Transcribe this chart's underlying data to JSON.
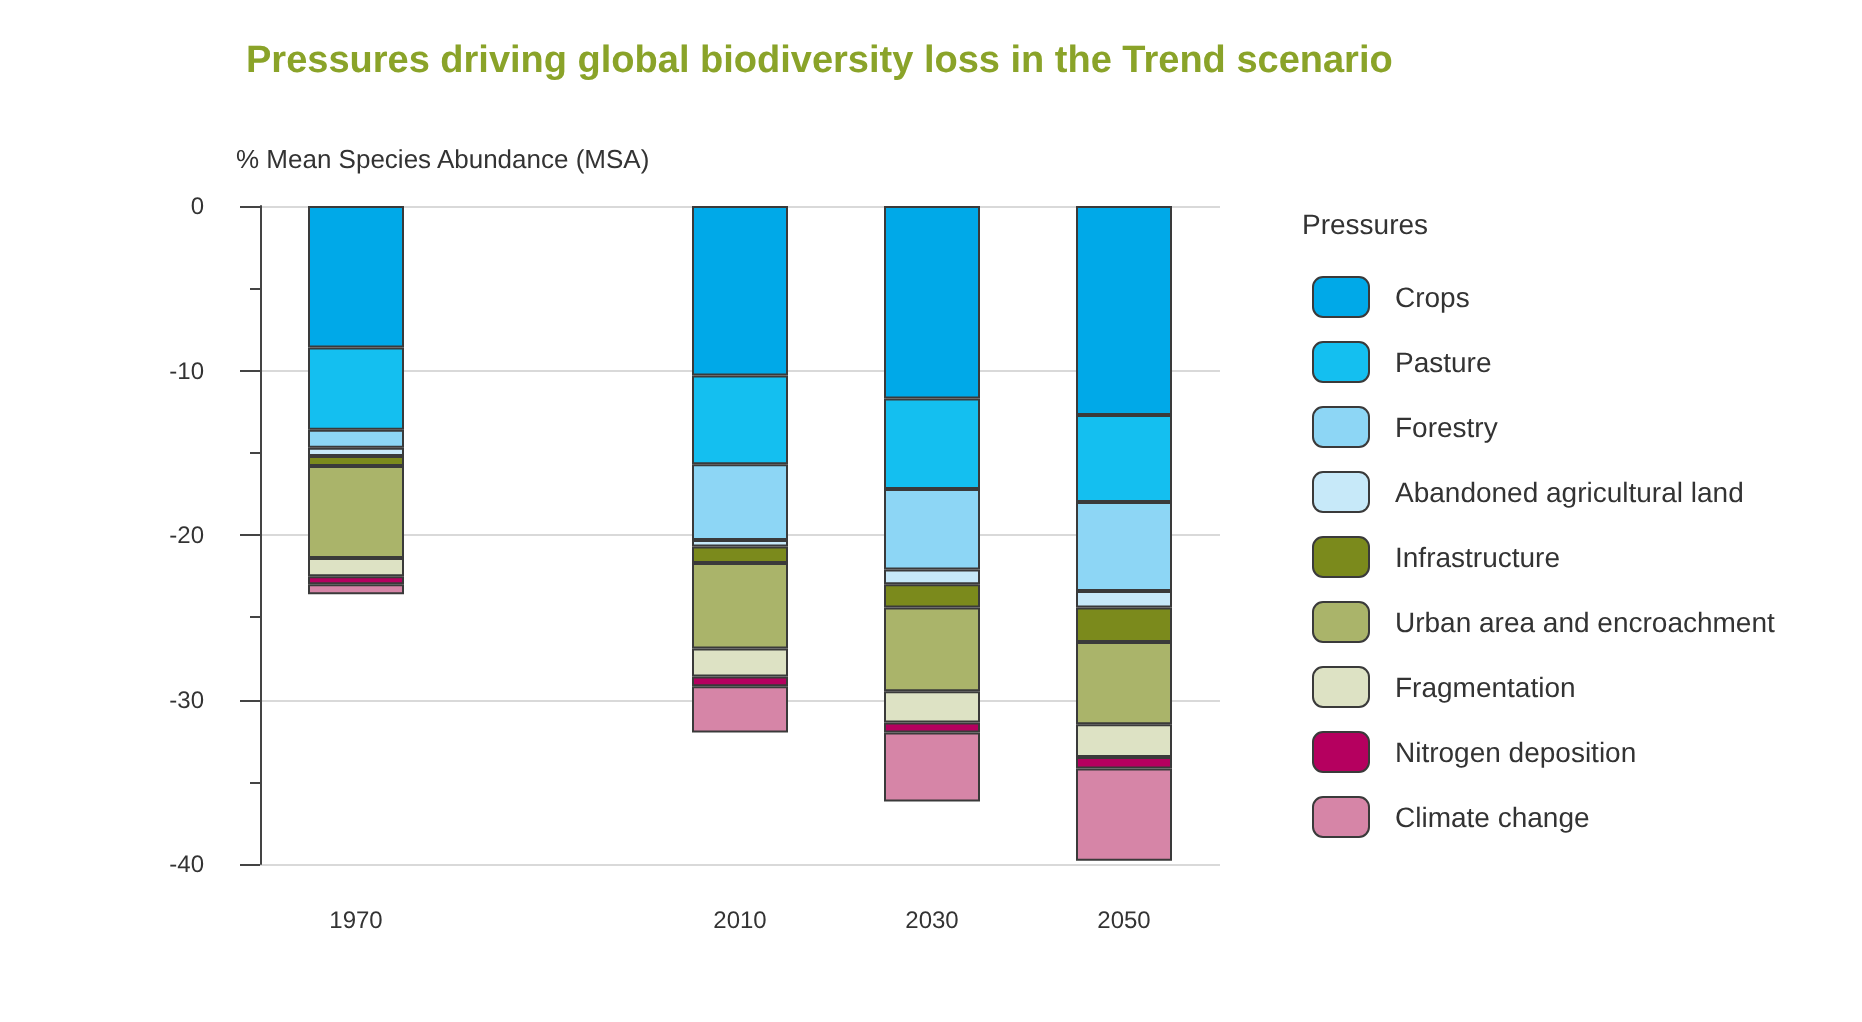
{
  "chart_data": {
    "type": "bar",
    "title": "Pressures driving global biodiversity loss in the Trend scenario",
    "ylabel": "% Mean Species Abundance (MSA)",
    "legend_title": "Pressures",
    "stacked": true,
    "categories": [
      "1970",
      null,
      "2010",
      "2030",
      "2050"
    ],
    "series": [
      {
        "name": "Crops",
        "color": "#00a9e8",
        "values": [
          -8.6,
          null,
          -10.3,
          -11.7,
          -12.7
        ]
      },
      {
        "name": "Pasture",
        "color": "#14bff0",
        "values": [
          -5.0,
          null,
          -5.4,
          -5.5,
          -5.3
        ]
      },
      {
        "name": "Forestry",
        "color": "#8dd6f5",
        "values": [
          -1.1,
          null,
          -4.6,
          -4.9,
          -5.4
        ]
      },
      {
        "name": "Abandoned agricultural land",
        "color": "#c7e9f9",
        "values": [
          -0.5,
          null,
          -0.4,
          -0.9,
          -1.0
        ]
      },
      {
        "name": "Infrastructure",
        "color": "#7b8a1c",
        "values": [
          -0.6,
          null,
          -1.0,
          -1.4,
          -2.1
        ]
      },
      {
        "name": "Urban area and encroachment",
        "color": "#aab46a",
        "values": [
          -5.6,
          null,
          -5.2,
          -5.1,
          -5.0
        ]
      },
      {
        "name": "Fragmentation",
        "color": "#dde2c4",
        "values": [
          -1.1,
          null,
          -1.7,
          -1.9,
          -2.0
        ]
      },
      {
        "name": "Nitrogen deposition",
        "color": "#b5005f",
        "values": [
          -0.5,
          null,
          -0.6,
          -0.6,
          -0.7
        ]
      },
      {
        "name": "Climate change",
        "color": "#d685a7",
        "values": [
          -0.6,
          null,
          -2.8,
          -4.2,
          -5.6
        ]
      }
    ],
    "ylim": [
      -40,
      0
    ],
    "yticks": [
      -40,
      -30,
      -20,
      -10,
      0
    ],
    "grid": "y",
    "legend": "right"
  }
}
